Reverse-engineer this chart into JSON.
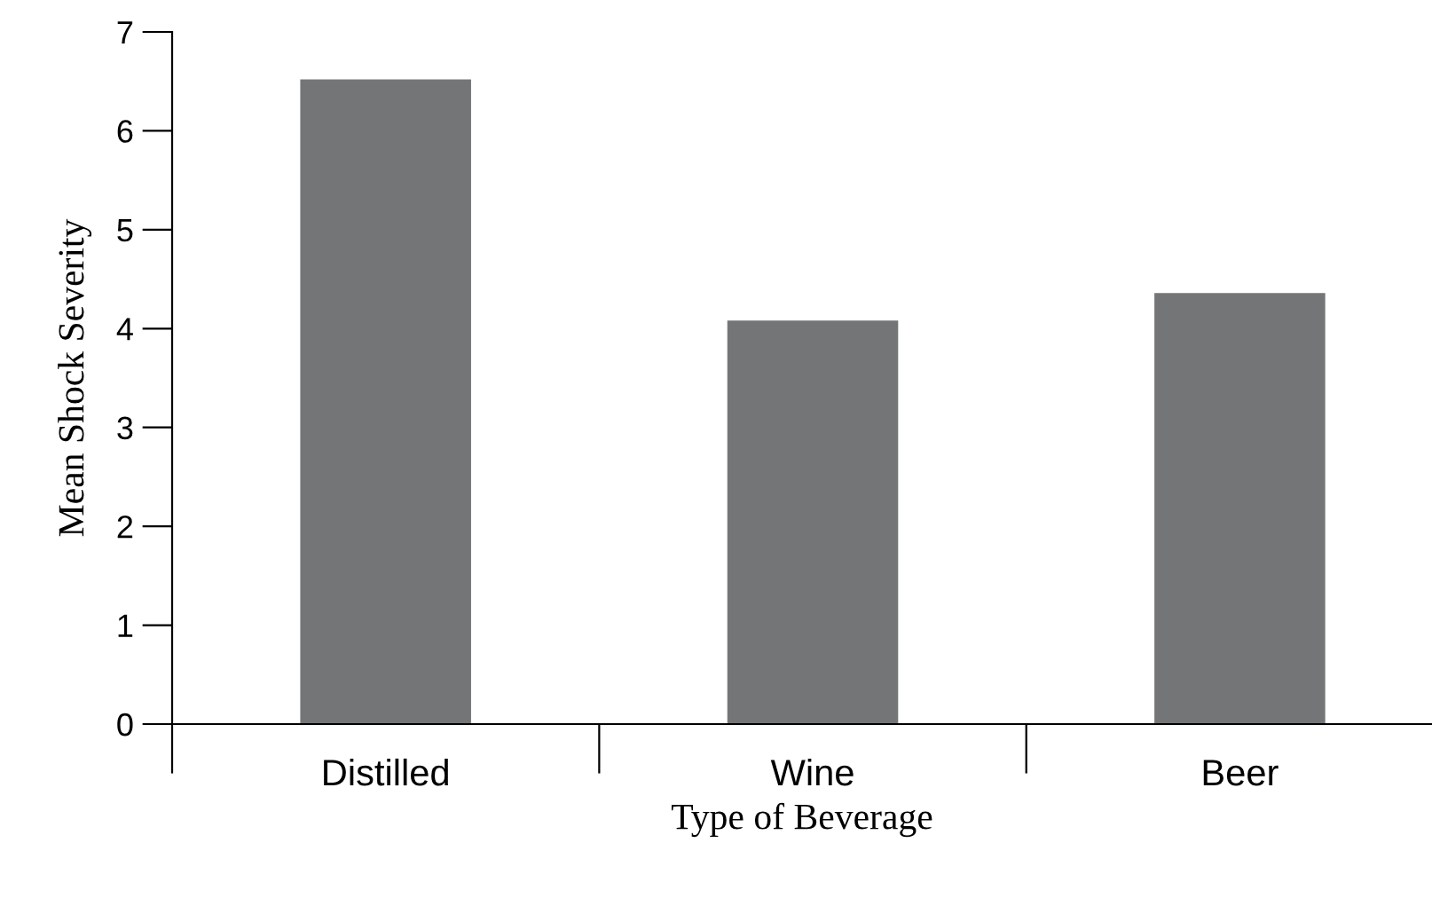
{
  "chart_data": {
    "type": "bar",
    "xlabel": "Type of Beverage",
    "ylabel": "Mean Shock Severity",
    "categories": [
      "Distilled",
      "Wine",
      "Beer"
    ],
    "values": [
      6.52,
      4.08,
      4.36
    ],
    "color": "#747576",
    "ylim": [
      0,
      7
    ],
    "yticks": [
      0,
      1,
      2,
      3,
      4,
      5,
      6,
      7
    ],
    "grid": false
  }
}
